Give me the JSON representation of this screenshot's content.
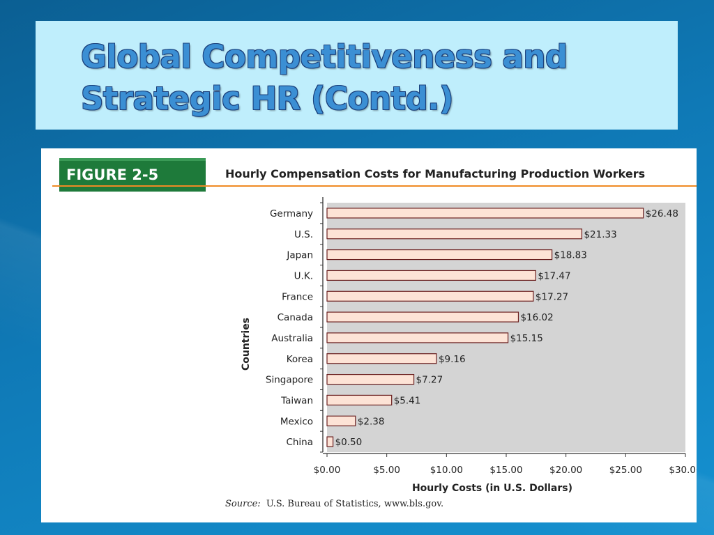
{
  "slide": {
    "title_line1": "Global Competitiveness and",
    "title_line2": "Strategic HR (Contd.)"
  },
  "figure": {
    "label": "FIGURE 2-5",
    "caption": "Hourly Compensation Costs for Manufacturing Production Workers",
    "source_label": "Source:",
    "source_text": "U.S. Bureau of Statistics, www.bls.gov."
  },
  "colors": {
    "background": "#0f79b6",
    "title_box": "#bfeefc",
    "title_text": "#3b8fd4",
    "figure_label_bg": "#1e7a3a",
    "rule": "#f08a24",
    "plot_bg": "#d4d4d4",
    "bar_fill": "#fde3d6",
    "bar_stroke": "#6a1f1f"
  },
  "chart_data": {
    "type": "bar",
    "orientation": "horizontal",
    "title": "Hourly Compensation Costs for Manufacturing Production Workers",
    "xlabel": "Hourly Costs (in U.S. Dollars)",
    "ylabel": "Countries",
    "categories": [
      "Germany",
      "U.S.",
      "Japan",
      "U.K.",
      "France",
      "Canada",
      "Australia",
      "Korea",
      "Singapore",
      "Taiwan",
      "Mexico",
      "China"
    ],
    "values": [
      26.48,
      21.33,
      18.83,
      17.47,
      17.27,
      16.02,
      15.15,
      9.16,
      7.27,
      5.41,
      2.38,
      0.5
    ],
    "value_labels": [
      "$26.48",
      "$21.33",
      "$18.83",
      "$17.47",
      "$17.27",
      "$16.02",
      "$15.15",
      "$9.16",
      "$7.27",
      "$5.41",
      "$2.38",
      "$0.50"
    ],
    "xlim": [
      0,
      30
    ],
    "xticks": [
      0,
      5,
      10,
      15,
      20,
      25,
      30
    ],
    "xtick_labels": [
      "$0.00",
      "$5.00",
      "$10.00",
      "$15.00",
      "$20.00",
      "$25.00",
      "$30.00"
    ],
    "grid": false
  }
}
